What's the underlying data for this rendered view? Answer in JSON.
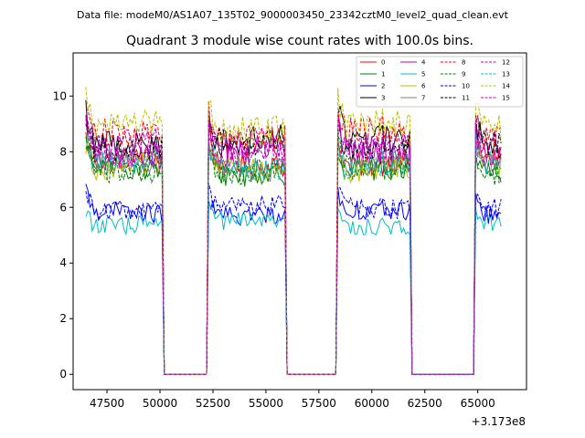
{
  "chart_data": {
    "type": "line",
    "suptitle": "Data file: modeM0/AS1A07_135T02_9000003450_23342cztM0_level2_quad_clean.evt",
    "title": "Quadrant 3 module wise count rates with 100.0s bins.",
    "xlabel": "",
    "ylabel": "",
    "offset_label": "+3.173e8",
    "xlim": [
      45900,
      67300
    ],
    "ylim": [
      -0.55,
      11.55
    ],
    "xticks": [
      47500,
      50000,
      52500,
      55000,
      57500,
      60000,
      62500,
      65000
    ],
    "xtick_labels": [
      "47500",
      "50000",
      "52500",
      "55000",
      "57500",
      "60000",
      "62500",
      "65000"
    ],
    "yticks": [
      0,
      2,
      4,
      6,
      8,
      10
    ],
    "ytick_labels": [
      "0",
      "2",
      "4",
      "6",
      "8",
      "10"
    ],
    "grid": false,
    "legend_position": "upper right",
    "legend_columns": 4,
    "active_segments": [
      [
        46500,
        50100
      ],
      [
        52250,
        55900
      ],
      [
        58350,
        61800
      ],
      [
        64850,
        66150
      ]
    ],
    "gap_level": 0,
    "series": [
      {
        "name": "0",
        "color": "#ff0000",
        "dash": "solid",
        "level": 7.6
      },
      {
        "name": "1",
        "color": "#008000",
        "dash": "solid",
        "level": 7.3
      },
      {
        "name": "2",
        "color": "#0000ff",
        "dash": "solid",
        "level": 5.8
      },
      {
        "name": "3",
        "color": "#000000",
        "dash": "solid",
        "level": 8.4
      },
      {
        "name": "4",
        "color": "#bf00bf",
        "dash": "solid",
        "level": 8.0
      },
      {
        "name": "5",
        "color": "#00bfbf",
        "dash": "solid",
        "level": 5.4
      },
      {
        "name": "6",
        "color": "#bfbf00",
        "dash": "solid",
        "level": 7.4
      },
      {
        "name": "7",
        "color": "#808080",
        "dash": "solid",
        "level": 7.5
      },
      {
        "name": "8",
        "color": "#ff0000",
        "dash": "dashed",
        "level": 8.6
      },
      {
        "name": "9",
        "color": "#008000",
        "dash": "dashed",
        "level": 7.3
      },
      {
        "name": "10",
        "color": "#0000ff",
        "dash": "dashed",
        "level": 6.0
      },
      {
        "name": "11",
        "color": "#000000",
        "dash": "dashed",
        "level": 8.2
      },
      {
        "name": "12",
        "color": "#bf00bf",
        "dash": "dashed",
        "level": 8.3
      },
      {
        "name": "13",
        "color": "#00bfbf",
        "dash": "dashed",
        "level": 7.5
      },
      {
        "name": "14",
        "color": "#bfbf00",
        "dash": "dashed",
        "level": 8.9
      },
      {
        "name": "15",
        "color": "#bf00bf",
        "dash": "dashed",
        "level": 7.9
      }
    ]
  }
}
